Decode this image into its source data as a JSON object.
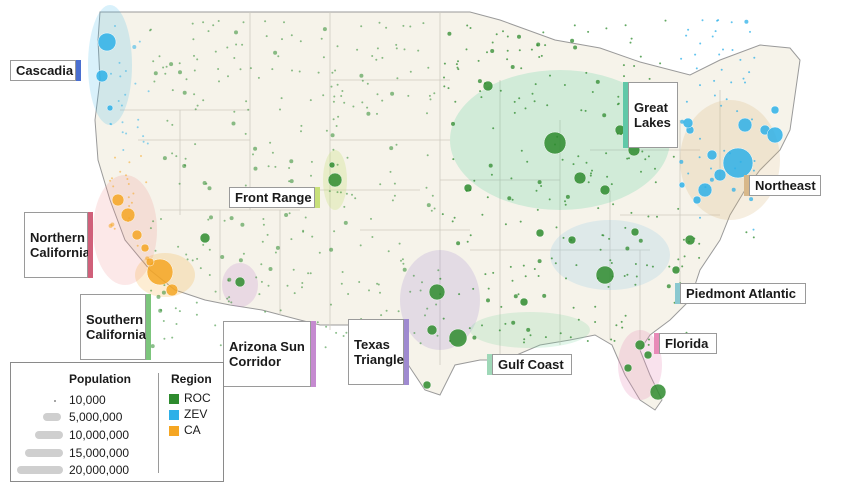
{
  "regions": [
    {
      "key": "cascadia",
      "label": "Cascadia",
      "color": "#4a6fd0"
    },
    {
      "key": "northern-california",
      "label": "Northern\nCalifornia",
      "color": "#d0607a"
    },
    {
      "key": "southern-california",
      "label": "Southern\nCalifornia",
      "color": "#7cc57c"
    },
    {
      "key": "front-range",
      "label": "Front Range",
      "color": "#c8e07a"
    },
    {
      "key": "arizona-sun-corridor",
      "label": "Arizona Sun\nCorridor",
      "color": "#c58ad0"
    },
    {
      "key": "texas-triangle",
      "label": "Texas\nTriangle",
      "color": "#9f8ad0"
    },
    {
      "key": "great-lakes",
      "label": "Great\nLakes",
      "color": "#60c8a8"
    },
    {
      "key": "northeast",
      "label": "Northeast",
      "color": "#d8b88a"
    },
    {
      "key": "piedmont-atlantic",
      "label": "Piedmont Atlantic",
      "color": "#8ac8d0"
    },
    {
      "key": "gulf-coast",
      "label": "Gulf Coast",
      "color": "#9fd8b8"
    },
    {
      "key": "florida",
      "label": "Florida",
      "color": "#e88ab8"
    }
  ],
  "legend": {
    "population_title": "Population",
    "population_items": [
      "10,000",
      "5,000,000",
      "10,000,000",
      "15,000,000",
      "20,000,000"
    ],
    "region_title": "Region",
    "region_items": [
      {
        "label": "ROC",
        "color": "#2e8b2e"
      },
      {
        "label": "ZEV",
        "color": "#2eb0e8"
      },
      {
        "label": "CA",
        "color": "#f5a623"
      }
    ]
  },
  "colors": {
    "roc": "#2e8b2e",
    "zev": "#2eb0e8",
    "ca": "#f5a623",
    "state_border": "#c8c8c8",
    "land": "#f6f3ea"
  }
}
